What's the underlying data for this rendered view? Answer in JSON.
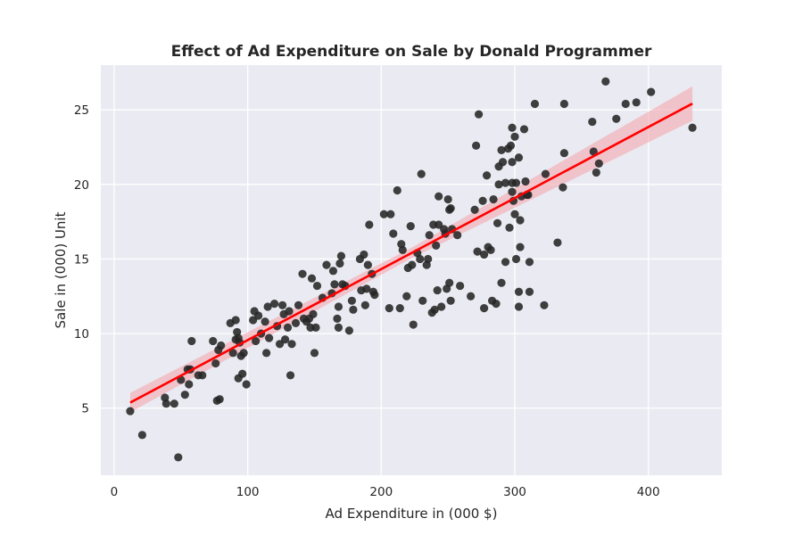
{
  "chart_data": {
    "type": "scatter",
    "title": "Effect of Ad Expenditure on Sale by Donald Programmer",
    "xlabel": "Ad Expenditure in (000 $)",
    "ylabel": "Sale in (000) Unit",
    "xlim": [
      -10,
      455
    ],
    "ylim": [
      0.5,
      28
    ],
    "xticks": [
      0,
      100,
      200,
      300,
      400
    ],
    "yticks": [
      5,
      10,
      15,
      20,
      25
    ],
    "grid": true,
    "background_color": "#eaeaf2",
    "point_color": "#262626",
    "line_color": "#ff0000",
    "band_color": "#f4a0a8",
    "regression": {
      "x_range": [
        12,
        433
      ],
      "intercept": 4.8,
      "slope": 0.04762,
      "ci_halfwidth": {
        "left": 0.65,
        "mid": 0.35,
        "right": 1.15
      }
    },
    "points": [
      [
        12,
        4.8
      ],
      [
        21,
        3.2
      ],
      [
        38,
        5.7
      ],
      [
        39,
        5.3
      ],
      [
        45,
        5.3
      ],
      [
        48,
        1.7
      ],
      [
        50,
        6.9
      ],
      [
        53,
        5.9
      ],
      [
        55,
        7.6
      ],
      [
        56,
        6.6
      ],
      [
        57,
        7.6
      ],
      [
        58,
        9.5
      ],
      [
        63,
        7.2
      ],
      [
        66,
        7.2
      ],
      [
        74,
        9.5
      ],
      [
        76,
        8.0
      ],
      [
        77,
        5.5
      ],
      [
        78,
        8.9
      ],
      [
        79,
        5.6
      ],
      [
        80,
        9.2
      ],
      [
        87,
        10.7
      ],
      [
        89,
        8.7
      ],
      [
        91,
        9.6
      ],
      [
        91,
        10.9
      ],
      [
        92,
        10.1
      ],
      [
        93,
        7.0
      ],
      [
        93,
        9.7
      ],
      [
        94,
        9.4
      ],
      [
        96,
        7.3
      ],
      [
        95,
        8.5
      ],
      [
        97,
        8.7
      ],
      [
        99,
        6.6
      ],
      [
        104,
        10.9
      ],
      [
        105,
        11.5
      ],
      [
        106,
        9.5
      ],
      [
        108,
        11.2
      ],
      [
        110,
        10.0
      ],
      [
        113,
        10.8
      ],
      [
        114,
        8.7
      ],
      [
        115,
        11.8
      ],
      [
        116,
        9.7
      ],
      [
        120,
        12.0
      ],
      [
        122,
        10.5
      ],
      [
        124,
        9.3
      ],
      [
        126,
        11.9
      ],
      [
        127,
        11.3
      ],
      [
        128,
        9.6
      ],
      [
        130,
        10.4
      ],
      [
        131,
        11.5
      ],
      [
        132,
        7.2
      ],
      [
        133,
        9.3
      ],
      [
        136,
        10.7
      ],
      [
        138,
        11.9
      ],
      [
        141,
        14.0
      ],
      [
        142,
        11.0
      ],
      [
        144,
        10.8
      ],
      [
        146,
        11.0
      ],
      [
        147,
        10.4
      ],
      [
        148,
        13.7
      ],
      [
        149,
        11.3
      ],
      [
        150,
        8.7
      ],
      [
        151,
        10.4
      ],
      [
        152,
        13.2
      ],
      [
        156,
        12.4
      ],
      [
        159,
        14.6
      ],
      [
        163,
        12.7
      ],
      [
        164,
        14.2
      ],
      [
        165,
        13.3
      ],
      [
        167,
        11.0
      ],
      [
        168,
        10.4
      ],
      [
        168,
        11.8
      ],
      [
        169,
        14.7
      ],
      [
        170,
        15.2
      ],
      [
        171,
        13.3
      ],
      [
        173,
        13.2
      ],
      [
        176,
        10.2
      ],
      [
        178,
        12.2
      ],
      [
        179,
        11.6
      ],
      [
        184,
        15.0
      ],
      [
        185,
        12.9
      ],
      [
        187,
        15.3
      ],
      [
        188,
        11.9
      ],
      [
        189,
        13.0
      ],
      [
        190,
        14.6
      ],
      [
        191,
        17.3
      ],
      [
        193,
        14.0
      ],
      [
        194,
        12.8
      ],
      [
        195,
        12.6
      ],
      [
        202,
        18.0
      ],
      [
        206,
        11.7
      ],
      [
        207,
        18.0
      ],
      [
        209,
        16.7
      ],
      [
        212,
        19.6
      ],
      [
        214,
        11.7
      ],
      [
        215,
        16.0
      ],
      [
        216,
        15.6
      ],
      [
        219,
        12.5
      ],
      [
        220,
        14.4
      ],
      [
        222,
        17.2
      ],
      [
        223,
        14.6
      ],
      [
        224,
        10.6
      ],
      [
        227,
        15.4
      ],
      [
        229,
        15.0
      ],
      [
        230,
        20.7
      ],
      [
        231,
        12.2
      ],
      [
        234,
        14.6
      ],
      [
        235,
        15.0
      ],
      [
        236,
        16.6
      ],
      [
        238,
        11.4
      ],
      [
        239,
        17.3
      ],
      [
        240,
        11.6
      ],
      [
        241,
        15.9
      ],
      [
        242,
        12.9
      ],
      [
        243,
        17.3
      ],
      [
        243,
        19.2
      ],
      [
        245,
        11.8
      ],
      [
        247,
        17.0
      ],
      [
        248,
        16.7
      ],
      [
        249,
        13.0
      ],
      [
        250,
        19.0
      ],
      [
        251,
        13.4
      ],
      [
        251,
        18.3
      ],
      [
        252,
        12.2
      ],
      [
        252,
        18.4
      ],
      [
        253,
        17.0
      ],
      [
        257,
        16.6
      ],
      [
        259,
        13.2
      ],
      [
        267,
        12.5
      ],
      [
        270,
        18.3
      ],
      [
        271,
        22.6
      ],
      [
        272,
        15.5
      ],
      [
        273,
        24.7
      ],
      [
        276,
        18.9
      ],
      [
        277,
        11.7
      ],
      [
        277,
        15.3
      ],
      [
        279,
        20.6
      ],
      [
        280,
        15.8
      ],
      [
        282,
        15.6
      ],
      [
        283,
        12.2
      ],
      [
        284,
        19.0
      ],
      [
        286,
        12.0
      ],
      [
        287,
        17.4
      ],
      [
        288,
        21.2
      ],
      [
        288,
        20.0
      ],
      [
        290,
        13.4
      ],
      [
        290,
        22.3
      ],
      [
        291,
        21.5
      ],
      [
        293,
        20.1
      ],
      [
        293,
        14.8
      ],
      [
        295,
        22.4
      ],
      [
        296,
        17.1
      ],
      [
        297,
        22.6
      ],
      [
        298,
        23.8
      ],
      [
        298,
        20.1
      ],
      [
        298,
        19.5
      ],
      [
        298,
        21.5
      ],
      [
        299,
        18.9
      ],
      [
        300,
        23.2
      ],
      [
        300,
        18.0
      ],
      [
        301,
        15.0
      ],
      [
        301,
        20.1
      ],
      [
        303,
        11.8
      ],
      [
        303,
        12.8
      ],
      [
        303,
        21.8
      ],
      [
        304,
        15.8
      ],
      [
        304,
        17.6
      ],
      [
        305,
        19.2
      ],
      [
        307,
        23.7
      ],
      [
        308,
        20.2
      ],
      [
        309,
        19.3
      ],
      [
        310,
        19.3
      ],
      [
        311,
        14.8
      ],
      [
        311,
        12.8
      ],
      [
        315,
        25.4
      ],
      [
        322,
        11.9
      ],
      [
        323,
        20.7
      ],
      [
        332,
        16.1
      ],
      [
        336,
        19.8
      ],
      [
        337,
        25.4
      ],
      [
        337,
        22.1
      ],
      [
        358,
        24.2
      ],
      [
        359,
        22.2
      ],
      [
        361,
        20.8
      ],
      [
        363,
        21.4
      ],
      [
        368,
        26.9
      ],
      [
        376,
        24.4
      ],
      [
        383,
        25.4
      ],
      [
        391,
        25.5
      ],
      [
        402,
        26.2
      ],
      [
        433,
        23.8
      ]
    ]
  }
}
